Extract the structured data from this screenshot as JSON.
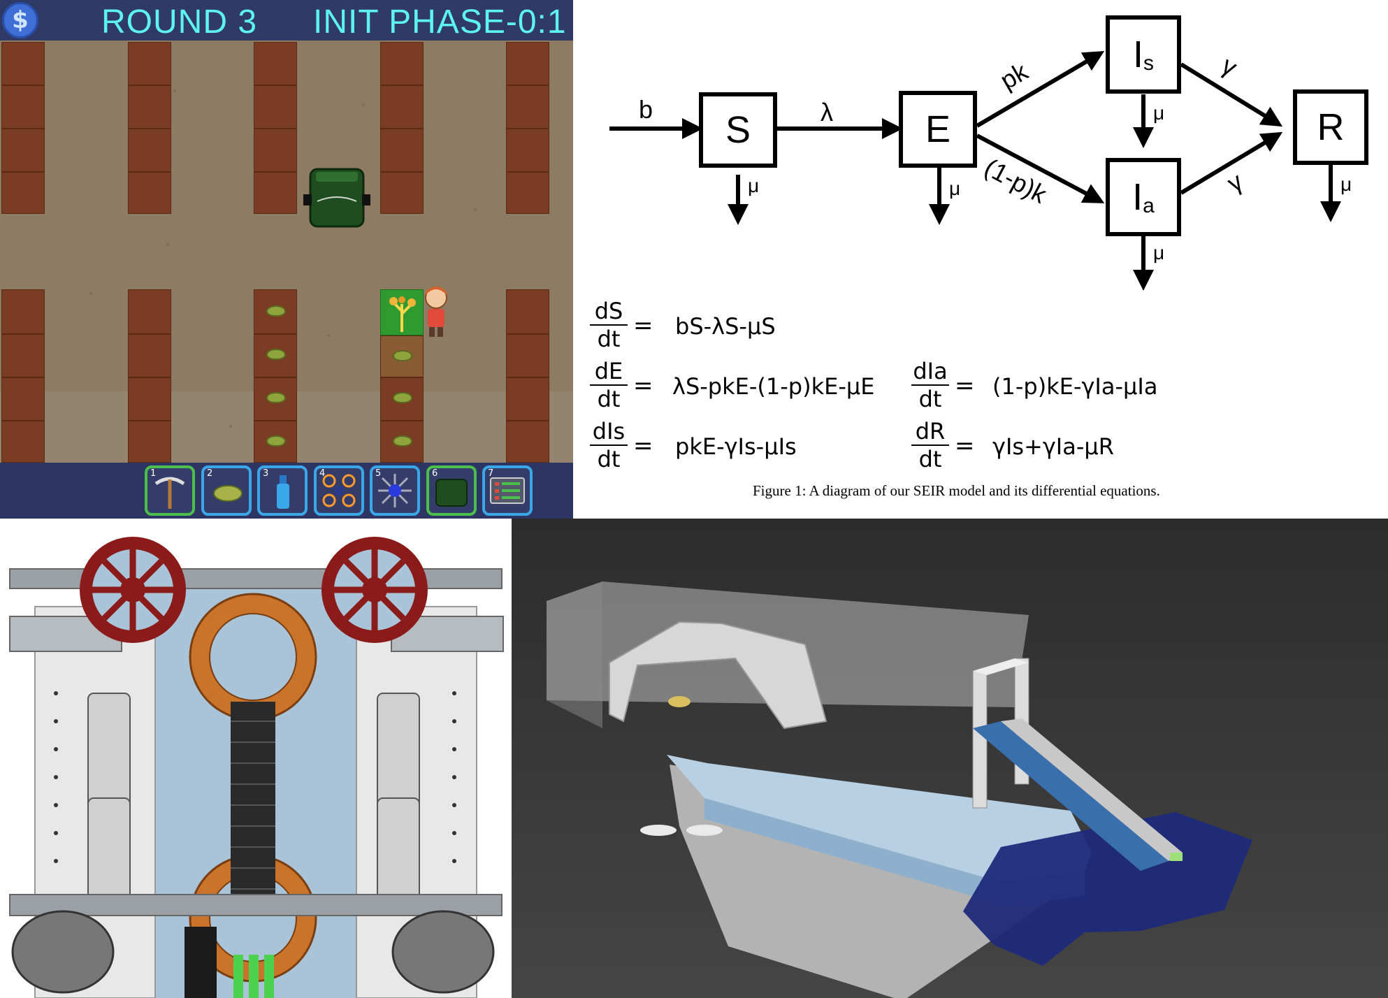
{
  "game": {
    "coin_icon_symbol": "$",
    "round_label": "ROUND 3",
    "phase_label": "INIT PHASE-0:1",
    "toolbar_slots": [
      {
        "number": "1",
        "icon": "pickaxe-icon",
        "border": "#4cbe4c"
      },
      {
        "number": "2",
        "icon": "seed-icon",
        "border": "#3aa8e8"
      },
      {
        "number": "3",
        "icon": "spray-bottle-icon",
        "border": "#3aa8e8"
      },
      {
        "number": "4",
        "icon": "drone-icon",
        "border": "#3aa8e8"
      },
      {
        "number": "5",
        "icon": "sprinkler-icon",
        "border": "#3aa8e8"
      },
      {
        "number": "6",
        "icon": "tractor-icon",
        "border": "#4cbe4c"
      },
      {
        "number": "7",
        "icon": "control-panel-icon",
        "border": "#3aa8e8"
      }
    ]
  },
  "seir": {
    "boxes": {
      "S": "S",
      "E": "E",
      "R": "R",
      "Is": "I",
      "Is_sub": "s",
      "Ia": "I",
      "Ia_sub": "a"
    },
    "rates": {
      "b": "b",
      "lambda": "λ",
      "pk": "pk",
      "one_minus_p_k": "(1-p)k",
      "gamma": "γ",
      "mu": "μ"
    },
    "equations": [
      {
        "num": "dS",
        "den": "dt",
        "rhs": "bS-λS-μS"
      },
      {
        "num": "dE",
        "den": "dt",
        "rhs": "λS-pkE-(1-p)kE-μE"
      },
      {
        "num": "dIs",
        "den": "dt",
        "rhs": "pkE-γIs-μIs"
      },
      {
        "num": "dIa",
        "den": "dt",
        "rhs": "(1-p)kE-γIa-μIa"
      },
      {
        "num": "dR",
        "den": "dt",
        "rhs": "γIs+γIa-μR"
      }
    ],
    "equals": "=",
    "caption": "Figure 1: A diagram of our SEIR model and its differential equations."
  },
  "robot": {
    "name": "robot-cad-render"
  },
  "boat": {
    "name": "boat-3d-render"
  }
}
